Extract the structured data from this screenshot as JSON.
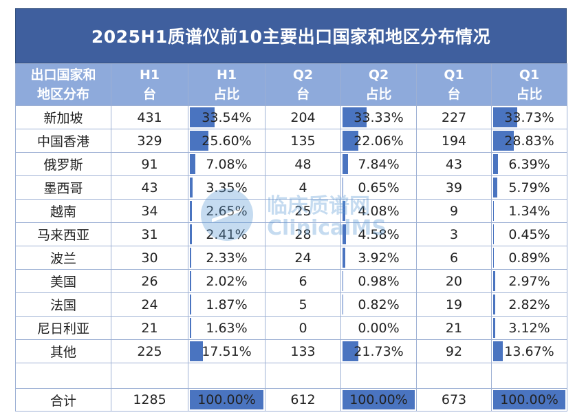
{
  "title": "2025H1质谱仪前10主要出口国家和地区分布情况",
  "headers": [
    [
      "出口国家和",
      "地区分布"
    ],
    [
      "H1",
      "台"
    ],
    [
      "H1",
      "占比"
    ],
    [
      "Q2",
      "台"
    ],
    [
      "Q2",
      "占比"
    ],
    [
      "Q1",
      "台"
    ],
    [
      "Q1",
      "占比"
    ]
  ],
  "rows": [
    {
      "region": "新加坡",
      "h1": "431",
      "h1_pct": "33.54%",
      "q2": "204",
      "q2_pct": "33.33%",
      "q1": "227",
      "q1_pct": "33.73%",
      "h1_frac": 0.3354,
      "q2_frac": 0.3333,
      "q1_frac": 0.3373
    },
    {
      "region": "中国香港",
      "h1": "329",
      "h1_pct": "25.60%",
      "q2": "135",
      "q2_pct": "22.06%",
      "q1": "194",
      "q1_pct": "28.83%",
      "h1_frac": 0.256,
      "q2_frac": 0.2206,
      "q1_frac": 0.2883
    },
    {
      "region": "俄罗斯",
      "h1": "91",
      "h1_pct": "7.08%",
      "q2": "48",
      "q2_pct": "7.84%",
      "q1": "43",
      "q1_pct": "6.39%",
      "h1_frac": 0.0708,
      "q2_frac": 0.0784,
      "q1_frac": 0.0639
    },
    {
      "region": "墨西哥",
      "h1": "43",
      "h1_pct": "3.35%",
      "q2": "4",
      "q2_pct": "0.65%",
      "q1": "39",
      "q1_pct": "5.79%",
      "h1_frac": 0.0335,
      "q2_frac": 0.0065,
      "q1_frac": 0.0579
    },
    {
      "region": "越南",
      "h1": "34",
      "h1_pct": "2.65%",
      "q2": "25",
      "q2_pct": "4.08%",
      "q1": "9",
      "q1_pct": "1.34%",
      "h1_frac": 0.0265,
      "q2_frac": 0.0408,
      "q1_frac": 0.0134
    },
    {
      "region": "马来西亚",
      "h1": "31",
      "h1_pct": "2.41%",
      "q2": "28",
      "q2_pct": "4.58%",
      "q1": "3",
      "q1_pct": "0.45%",
      "h1_frac": 0.0241,
      "q2_frac": 0.0458,
      "q1_frac": 0.0045
    },
    {
      "region": "波兰",
      "h1": "30",
      "h1_pct": "2.33%",
      "q2": "24",
      "q2_pct": "3.92%",
      "q1": "6",
      "q1_pct": "0.89%",
      "h1_frac": 0.0233,
      "q2_frac": 0.0392,
      "q1_frac": 0.0089
    },
    {
      "region": "美国",
      "h1": "26",
      "h1_pct": "2.02%",
      "q2": "6",
      "q2_pct": "0.98%",
      "q1": "20",
      "q1_pct": "2.97%",
      "h1_frac": 0.0202,
      "q2_frac": 0.0098,
      "q1_frac": 0.0297
    },
    {
      "region": "法国",
      "h1": "24",
      "h1_pct": "1.87%",
      "q2": "5",
      "q2_pct": "0.82%",
      "q1": "19",
      "q1_pct": "2.82%",
      "h1_frac": 0.0187,
      "q2_frac": 0.0082,
      "q1_frac": 0.0282
    },
    {
      "region": "尼日利亚",
      "h1": "21",
      "h1_pct": "1.63%",
      "q2": "0",
      "q2_pct": "0.00%",
      "q1": "21",
      "q1_pct": "3.12%",
      "h1_frac": 0.0163,
      "q2_frac": 0.0,
      "q1_frac": 0.0312
    },
    {
      "region": "其他",
      "h1": "225",
      "h1_pct": "17.51%",
      "q2": "133",
      "q2_pct": "21.73%",
      "q1": "92",
      "q1_pct": "13.67%",
      "h1_frac": 0.1751,
      "q2_frac": 0.2173,
      "q1_frac": 0.1367
    }
  ],
  "total": {
    "region": "合计",
    "h1": "1285",
    "h1_pct": "100.00%",
    "q2": "612",
    "q2_pct": "100.00%",
    "q1": "673",
    "q1_pct": "100.00%",
    "h1_frac": 1.0,
    "q2_frac": 1.0,
    "q1_frac": 1.0
  },
  "watermark": {
    "cn": "临床质谱网",
    "en": "ClinicalMS",
    "icon": "clinicalms-logo-icon"
  },
  "colors": {
    "title_bg": "#3f5f9e",
    "header_bg": "#8eaadb",
    "bar": "#4a74c0",
    "border": "#9db0d4"
  }
}
